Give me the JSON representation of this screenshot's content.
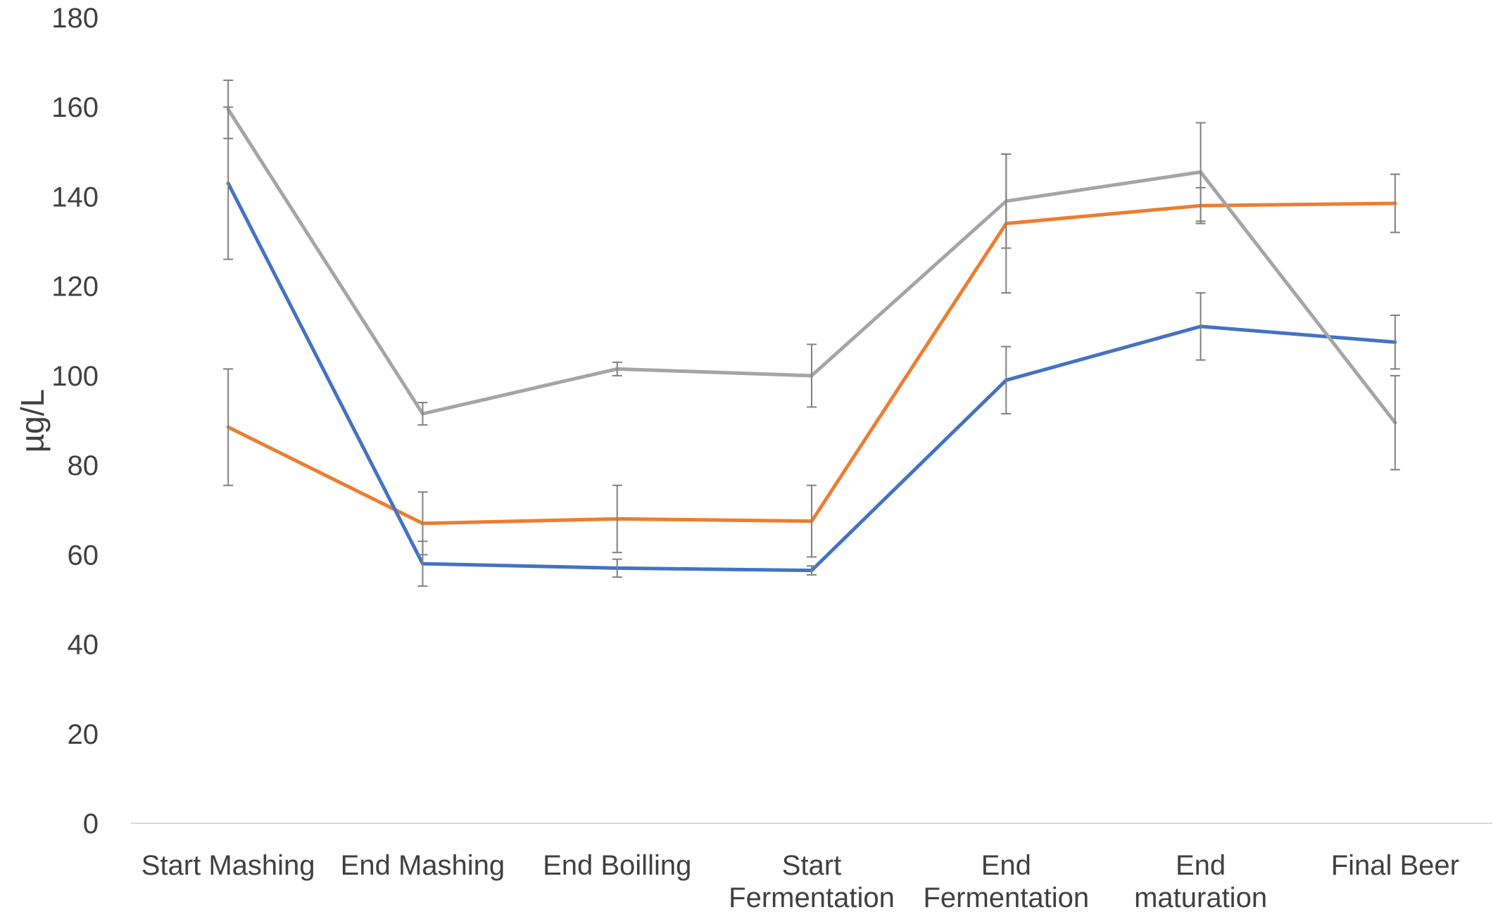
{
  "chart_data": {
    "type": "line",
    "title": "",
    "xlabel": "",
    "ylabel": "µg/L",
    "ylim": [
      0,
      180
    ],
    "y_ticks": [
      0,
      20,
      40,
      60,
      80,
      100,
      120,
      140,
      160,
      180
    ],
    "grid": false,
    "legend": "none",
    "categories": [
      [
        "Start Mashing"
      ],
      [
        "End Mashing"
      ],
      [
        "End Boilling"
      ],
      [
        "Start",
        "Fermentation"
      ],
      [
        "End",
        "Fermentation"
      ],
      [
        "End",
        "maturation"
      ],
      [
        "Final Beer"
      ]
    ],
    "series": [
      {
        "color": "#ED7D31",
        "values": [
          88.5,
          67,
          68,
          67.5,
          134,
          138,
          138.5
        ],
        "errors": [
          13,
          7,
          7.5,
          8,
          15.5,
          4,
          6.5
        ]
      },
      {
        "color": "#4472C4",
        "values": [
          143,
          58,
          57,
          56.5,
          99,
          111,
          107.5
        ],
        "errors": [
          17,
          5,
          2,
          1,
          7.5,
          7.5,
          6
        ]
      },
      {
        "color": "#A5A5A5",
        "values": [
          159.5,
          91.5,
          101.5,
          100,
          139,
          145.5,
          89.5
        ],
        "errors": [
          6.5,
          2.5,
          1.5,
          7,
          10.5,
          11,
          10.5
        ]
      }
    ]
  }
}
